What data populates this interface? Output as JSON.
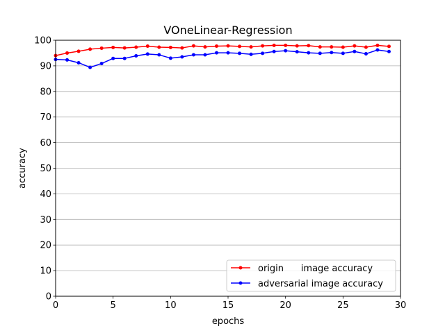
{
  "chart_data": {
    "type": "line",
    "title": "VOneLinear-Regression",
    "xlabel": "epochs",
    "ylabel": "accuracy",
    "xlim": [
      0,
      30
    ],
    "ylim": [
      0,
      100
    ],
    "xticks": [
      0,
      5,
      10,
      15,
      20,
      25,
      30
    ],
    "yticks": [
      0,
      10,
      20,
      30,
      40,
      50,
      60,
      70,
      80,
      90,
      100
    ],
    "grid": "horizontal",
    "legend_position": "lower-right",
    "x": [
      0,
      1,
      2,
      3,
      4,
      5,
      6,
      7,
      8,
      9,
      10,
      11,
      12,
      13,
      14,
      15,
      16,
      17,
      18,
      19,
      20,
      21,
      22,
      23,
      24,
      25,
      26,
      27,
      28,
      29
    ],
    "series": [
      {
        "name": "origin      image accuracy",
        "color": "#ff0000",
        "marker": "dot",
        "values": [
          94.0,
          95.0,
          95.7,
          96.5,
          96.9,
          97.2,
          97.0,
          97.3,
          97.7,
          97.3,
          97.2,
          97.0,
          97.8,
          97.4,
          97.7,
          97.8,
          97.6,
          97.4,
          97.8,
          98.0,
          98.0,
          97.8,
          97.9,
          97.4,
          97.4,
          97.3,
          97.8,
          97.3,
          98.0,
          97.6
        ]
      },
      {
        "name": "adversarial image accuracy",
        "color": "#0000ff",
        "marker": "dot",
        "values": [
          92.5,
          92.3,
          91.2,
          89.4,
          90.9,
          92.9,
          92.9,
          93.9,
          94.6,
          94.3,
          93.0,
          93.5,
          94.3,
          94.3,
          95.1,
          95.1,
          94.9,
          94.5,
          94.9,
          95.6,
          95.9,
          95.5,
          95.1,
          94.9,
          95.2,
          94.9,
          95.6,
          94.7,
          96.2,
          95.6
        ]
      }
    ]
  }
}
